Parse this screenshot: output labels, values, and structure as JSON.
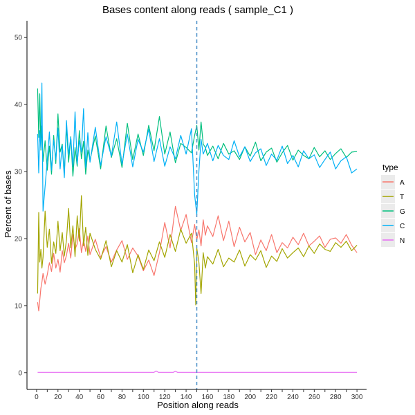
{
  "chart_data": {
    "type": "line",
    "title": "Bases content along reads ( sample_C1 )",
    "xlabel": "Position along reads",
    "ylabel": "Percent of bases",
    "xlim": [
      -9,
      309
    ],
    "ylim": [
      -2.5,
      52.5
    ],
    "xticks": [
      0,
      10,
      20,
      30,
      40,
      50,
      60,
      70,
      80,
      90,
      100,
      110,
      120,
      130,
      140,
      150,
      160,
      170,
      180,
      190,
      200,
      210,
      220,
      230,
      240,
      250,
      260,
      270,
      280,
      290,
      300
    ],
    "xtick_labels": [
      "0",
      "20",
      "40",
      "60",
      "80",
      "100",
      "120",
      "140",
      "160",
      "180",
      "200",
      "220",
      "240",
      "260",
      "280",
      "300"
    ],
    "yticks": [
      0,
      10,
      20,
      30,
      40,
      50
    ],
    "ytick_labels": [
      "0",
      "10",
      "20",
      "30",
      "40",
      "50"
    ],
    "grid": false,
    "vline": {
      "x": 150,
      "style": "dashed",
      "color": "#4a90c8"
    },
    "legend": {
      "title": "type",
      "position": "right"
    },
    "series": [
      {
        "name": "A",
        "color": "#F8766D",
        "x": [
          1,
          2,
          3,
          4,
          5,
          6,
          8,
          10,
          12,
          14,
          16,
          18,
          20,
          22,
          24,
          26,
          28,
          30,
          32,
          34,
          36,
          38,
          40,
          42,
          44,
          46,
          48,
          50,
          55,
          60,
          65,
          70,
          75,
          80,
          85,
          90,
          95,
          100,
          105,
          110,
          115,
          120,
          125,
          130,
          135,
          140,
          145,
          148,
          150,
          152,
          154,
          156,
          158,
          160,
          165,
          170,
          175,
          180,
          185,
          190,
          195,
          200,
          205,
          210,
          215,
          220,
          225,
          230,
          235,
          240,
          245,
          250,
          255,
          260,
          265,
          270,
          275,
          280,
          285,
          290,
          295,
          300
        ],
        "values": [
          10.5,
          9.2,
          10.8,
          12.6,
          13.5,
          14.8,
          13.2,
          14.6,
          16.4,
          15.1,
          17.8,
          15.6,
          16.9,
          15.0,
          18.2,
          16.4,
          17.5,
          19.3,
          17.1,
          20.6,
          18.4,
          19.2,
          21.5,
          17.9,
          19.8,
          18.1,
          20.4,
          17.6,
          19.9,
          17.2,
          18.8,
          16.5,
          18.3,
          19.7,
          16.9,
          18.6,
          17.4,
          15.2,
          16.8,
          14.5,
          17.9,
          22.4,
          18.6,
          24.8,
          21.2,
          23.6,
          19.4,
          22.1,
          19.8,
          21.3,
          18.9,
          22.8,
          20.5,
          21.9,
          20.3,
          23.4,
          19.7,
          22.6,
          18.8,
          21.7,
          19.5,
          20.9,
          17.6,
          19.8,
          18.2,
          20.6,
          17.9,
          19.4,
          18.6,
          20.2,
          19.1,
          20.8,
          18.9,
          19.6,
          20.4,
          18.7,
          19.9,
          20.1,
          19.3,
          20.6,
          19.0,
          17.9
        ]
      },
      {
        "name": "T",
        "color": "#A3A500",
        "x": [
          1,
          2,
          3,
          4,
          5,
          6,
          8,
          10,
          12,
          14,
          16,
          18,
          20,
          22,
          24,
          26,
          28,
          30,
          32,
          34,
          36,
          38,
          40,
          42,
          44,
          46,
          48,
          50,
          55,
          60,
          65,
          70,
          75,
          80,
          85,
          90,
          95,
          100,
          105,
          110,
          115,
          120,
          125,
          130,
          135,
          140,
          145,
          148,
          149,
          150,
          152,
          154,
          156,
          158,
          160,
          165,
          170,
          175,
          180,
          185,
          190,
          195,
          200,
          205,
          210,
          215,
          220,
          225,
          230,
          235,
          240,
          245,
          250,
          255,
          260,
          265,
          270,
          275,
          280,
          285,
          290,
          295,
          300
        ],
        "values": [
          11.8,
          23.9,
          16.5,
          18.4,
          15.6,
          17.2,
          24.1,
          18.7,
          21.4,
          16.3,
          19.5,
          17.8,
          22.6,
          18.2,
          20.9,
          17.4,
          19.8,
          24.5,
          18.6,
          21.9,
          17.3,
          23.4,
          19.6,
          26.4,
          18.9,
          21.7,
          17.5,
          20.8,
          18.4,
          16.9,
          19.7,
          15.8,
          18.2,
          16.5,
          19.1,
          14.9,
          17.6,
          15.4,
          18.3,
          16.7,
          19.5,
          17.2,
          20.6,
          18.1,
          21.4,
          19.3,
          20.8,
          16.2,
          10.1,
          18.6,
          16.4,
          11.8,
          17.9,
          15.6,
          17.3,
          16.2,
          18.4,
          15.8,
          17.1,
          16.5,
          18.3,
          15.9,
          17.6,
          16.8,
          18.2,
          15.7,
          17.4,
          16.6,
          18.5,
          17.1,
          17.9,
          18.6,
          17.3,
          18.9,
          17.8,
          19.2,
          18.4,
          18.1,
          19.4,
          18.7,
          19.6,
          18.2,
          19.0
        ]
      },
      {
        "name": "G",
        "color": "#00BF7D",
        "x": [
          1,
          2,
          3,
          4,
          5,
          6,
          8,
          10,
          12,
          14,
          16,
          18,
          20,
          22,
          24,
          26,
          28,
          30,
          32,
          34,
          36,
          38,
          40,
          42,
          44,
          46,
          48,
          50,
          55,
          60,
          65,
          70,
          75,
          80,
          85,
          90,
          95,
          100,
          105,
          110,
          115,
          120,
          125,
          130,
          135,
          140,
          145,
          148,
          150,
          152,
          154,
          156,
          158,
          160,
          165,
          170,
          175,
          180,
          185,
          190,
          195,
          200,
          205,
          210,
          215,
          220,
          225,
          230,
          235,
          240,
          245,
          250,
          255,
          260,
          265,
          270,
          275,
          280,
          285,
          290,
          295,
          300
        ],
        "values": [
          42.4,
          35.1,
          41.6,
          33.2,
          36.8,
          31.5,
          34.6,
          30.2,
          33.8,
          29.6,
          35.4,
          31.2,
          38.6,
          32.9,
          34.1,
          29.8,
          36.7,
          31.4,
          35.2,
          29.3,
          33.6,
          30.8,
          36.1,
          31.9,
          34.5,
          29.6,
          33.2,
          31.7,
          35.3,
          30.4,
          36.8,
          32.1,
          34.9,
          30.6,
          37.2,
          31.8,
          35.6,
          32.4,
          36.9,
          33.1,
          38.2,
          32.6,
          35.9,
          31.3,
          34.2,
          33.6,
          32.8,
          35.4,
          36.9,
          33.2,
          37.4,
          34.1,
          33.6,
          32.4,
          33.8,
          31.9,
          34.2,
          32.6,
          33.1,
          31.8,
          33.7,
          32.3,
          34.4,
          31.6,
          32.9,
          33.5,
          31.4,
          32.8,
          33.9,
          31.7,
          33.2,
          32.4,
          31.9,
          33.6,
          32.2,
          33.1,
          31.8,
          32.7,
          33.4,
          32.1,
          32.9,
          33.0
        ]
      },
      {
        "name": "C",
        "color": "#00B0F6",
        "x": [
          1,
          2,
          3,
          4,
          5,
          6,
          8,
          10,
          12,
          14,
          16,
          18,
          20,
          22,
          24,
          26,
          28,
          30,
          32,
          34,
          36,
          38,
          40,
          42,
          44,
          46,
          48,
          50,
          55,
          60,
          65,
          70,
          75,
          80,
          85,
          90,
          95,
          100,
          105,
          110,
          115,
          120,
          125,
          130,
          135,
          140,
          145,
          148,
          150,
          152,
          154,
          156,
          158,
          160,
          165,
          170,
          175,
          180,
          185,
          190,
          195,
          200,
          205,
          210,
          215,
          220,
          225,
          230,
          235,
          240,
          245,
          250,
          255,
          260,
          265,
          270,
          275,
          280,
          285,
          290,
          295,
          300
        ],
        "values": [
          35.6,
          29.8,
          36.1,
          33.4,
          43.2,
          24.1,
          27.8,
          31.6,
          35.9,
          30.2,
          34.7,
          31.8,
          36.5,
          30.4,
          33.9,
          29.1,
          37.6,
          32.5,
          35.1,
          30.8,
          38.9,
          31.2,
          34.6,
          32.9,
          39.4,
          30.6,
          35.8,
          31.4,
          36.6,
          30.9,
          35.2,
          32.3,
          37.4,
          31.1,
          35.6,
          30.7,
          34.8,
          32.9,
          36.3,
          31.5,
          34.9,
          30.8,
          33.7,
          31.9,
          35.4,
          32.6,
          36.4,
          26.5,
          23.6,
          30.1,
          34.8,
          32.6,
          33.4,
          34.2,
          31.6,
          33.9,
          32.4,
          31.8,
          34.6,
          32.2,
          33.7,
          31.5,
          32.8,
          33.4,
          30.9,
          32.6,
          31.7,
          33.8,
          31.2,
          32.4,
          30.7,
          33.1,
          31.9,
          32.5,
          30.6,
          31.8,
          32.9,
          30.4,
          31.6,
          32.2,
          29.8,
          30.4
        ]
      },
      {
        "name": "N",
        "color": "#E76BF3",
        "x": [
          1,
          50,
          100,
          110,
          112,
          114,
          120,
          128,
          130,
          132,
          140,
          150,
          200,
          250,
          300
        ],
        "values": [
          0.05,
          0.05,
          0.05,
          0.05,
          0.25,
          0.05,
          0.05,
          0.05,
          0.2,
          0.05,
          0.05,
          0.05,
          0.05,
          0.05,
          0.05
        ]
      }
    ]
  }
}
